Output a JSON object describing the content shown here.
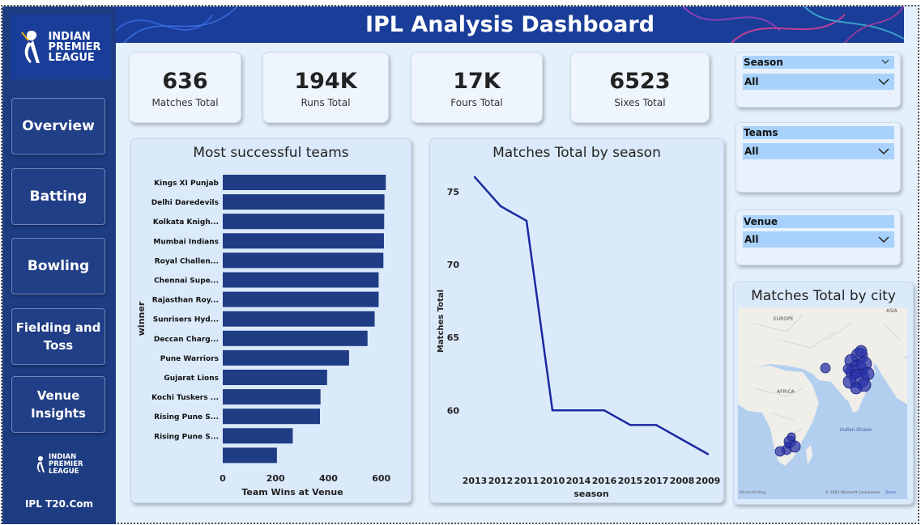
{
  "header": {
    "title": "IPL Analysis Dashboard"
  },
  "brand": {
    "logo_lines": [
      "INDIAN",
      "PREMIER",
      "LEAGUE"
    ],
    "footer": "IPL T20.Com"
  },
  "nav": [
    {
      "label": "Overview"
    },
    {
      "label": "Batting"
    },
    {
      "label": "Bowling"
    },
    {
      "label": "Fielding and Toss"
    },
    {
      "label": "Venue Insights"
    }
  ],
  "kpis": [
    {
      "value": "636",
      "label": "Matches Total"
    },
    {
      "value": "194K",
      "label": "Runs Total"
    },
    {
      "value": "17K",
      "label": "Fours Total"
    },
    {
      "value": "6523",
      "label": "Sixes Total"
    }
  ],
  "slicers": [
    {
      "label": "Season",
      "value": "All"
    },
    {
      "label": "Teams",
      "value": "All"
    },
    {
      "label": "Venue",
      "value": "All"
    }
  ],
  "map": {
    "title": "Matches Total by city",
    "labels": {
      "europe": "EUROPE",
      "asia": "ASIA",
      "africa": "AFRICA",
      "ocean": "Indian Ocean"
    },
    "attribution": "Microsoft Bing",
    "copyright": "© 2025 Microsoft Corporation",
    "terms": "Terms"
  },
  "chart_data": [
    {
      "type": "bar",
      "orientation": "horizontal",
      "title": "Most successful teams",
      "xlabel": "Team Wins at Venue",
      "ylabel": "winner",
      "xlim": [
        0,
        650
      ],
      "xticks": [
        0,
        200,
        400,
        600
      ],
      "categories": [
        "Kings XI Punjab",
        "Delhi Daredevils",
        "Kolkata Knigh...",
        "Mumbai Indians",
        "Royal Challen...",
        "Chennai Supe...",
        "Rajasthan Roy...",
        "Sunrisers Hyd...",
        "Deccan Charg...",
        "Pune Warriors",
        "Gujarat Lions",
        "Kochi Tuskers ...",
        "Rising Pune S...",
        "Rising Pune S...",
        ""
      ],
      "values": [
        617,
        612,
        611,
        610,
        608,
        590,
        590,
        575,
        548,
        478,
        395,
        370,
        368,
        265,
        205
      ],
      "color": "#1f3c85"
    },
    {
      "type": "line",
      "title": "Matches Total by season",
      "xlabel": "season",
      "ylabel": "Matches Total",
      "categories": [
        "2013",
        "2012",
        "2011",
        "2010",
        "2014",
        "2016",
        "2015",
        "2017",
        "2008",
        "2009"
      ],
      "values": [
        76,
        74,
        73,
        60,
        60,
        60,
        59,
        59,
        58,
        57
      ],
      "yticks": [
        60,
        65,
        70,
        75
      ],
      "ylim": [
        56.8,
        76.6
      ],
      "color": "#1a2a9e"
    }
  ]
}
